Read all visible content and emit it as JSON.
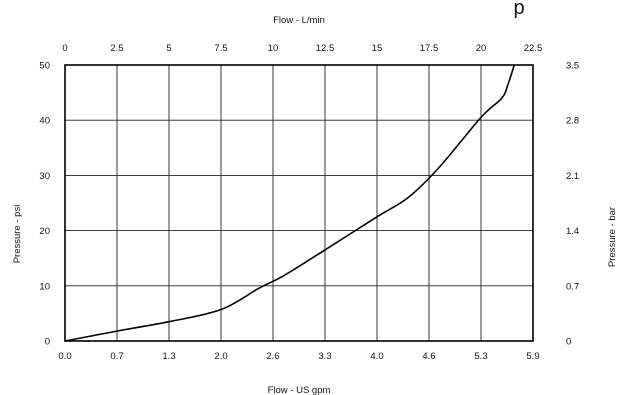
{
  "chart_data": {
    "type": "line",
    "top_title_fragment": "p",
    "x_top_label": "Flow - L/min",
    "x_bottom_label": "Flow - US gpm",
    "y_left_label": "Pressure - psi",
    "y_right_label": "Pressure - bar",
    "x_top_ticks": [
      "0",
      "2.5",
      "5",
      "7.5",
      "10",
      "12.5",
      "15",
      "17.5",
      "20",
      "22.5"
    ],
    "x_bottom_ticks": [
      "0.0",
      "0.7",
      "1.3",
      "2.0",
      "2.6",
      "3.3",
      "4.0",
      "4.6",
      "5.3",
      "5.9"
    ],
    "y_left_ticks": [
      "0",
      "10",
      "20",
      "30",
      "40",
      "50"
    ],
    "y_right_ticks": [
      "0",
      "0.7",
      "1.4",
      "2.1",
      "2.8",
      "3.5"
    ],
    "xlim_lpm": [
      0,
      22.5
    ],
    "ylim_psi": [
      0,
      50
    ],
    "grid": true,
    "series": [
      {
        "x_lpm": [
          0,
          2.5,
          5,
          7.5,
          9.3,
          10.5,
          12.5,
          15,
          16.5,
          18,
          20,
          21,
          21.3,
          21.6
        ],
        "y_psi": [
          0,
          1.8,
          3.5,
          5.7,
          9.5,
          11.8,
          16.5,
          22.5,
          26,
          31.5,
          40.5,
          44,
          46.5,
          50
        ]
      }
    ]
  }
}
